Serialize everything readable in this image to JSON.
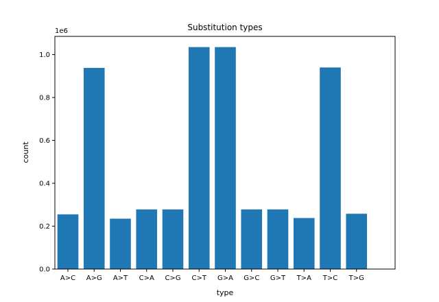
{
  "chart_data": {
    "type": "bar",
    "title": "Substitution types",
    "xlabel": "type",
    "ylabel": "count",
    "y_offset_label": "1e6",
    "categories": [
      "A>C",
      "A>G",
      "A>T",
      "C>A",
      "C>G",
      "C>T",
      "G>A",
      "G>C",
      "G>T",
      "T>A",
      "T>C",
      "T>G"
    ],
    "values": [
      255000,
      938000,
      235000,
      278000,
      278000,
      1035000,
      1035000,
      278000,
      278000,
      238000,
      940000,
      258000
    ],
    "ylim": [
      0,
      1085000
    ],
    "yticks": [
      0,
      200000,
      400000,
      600000,
      800000,
      1000000
    ],
    "ytick_labels": [
      "0.0",
      "0.2",
      "0.4",
      "0.6",
      "0.8",
      "1.0"
    ],
    "grid": false,
    "legend": "none",
    "bar_color": "#1f77b4"
  }
}
